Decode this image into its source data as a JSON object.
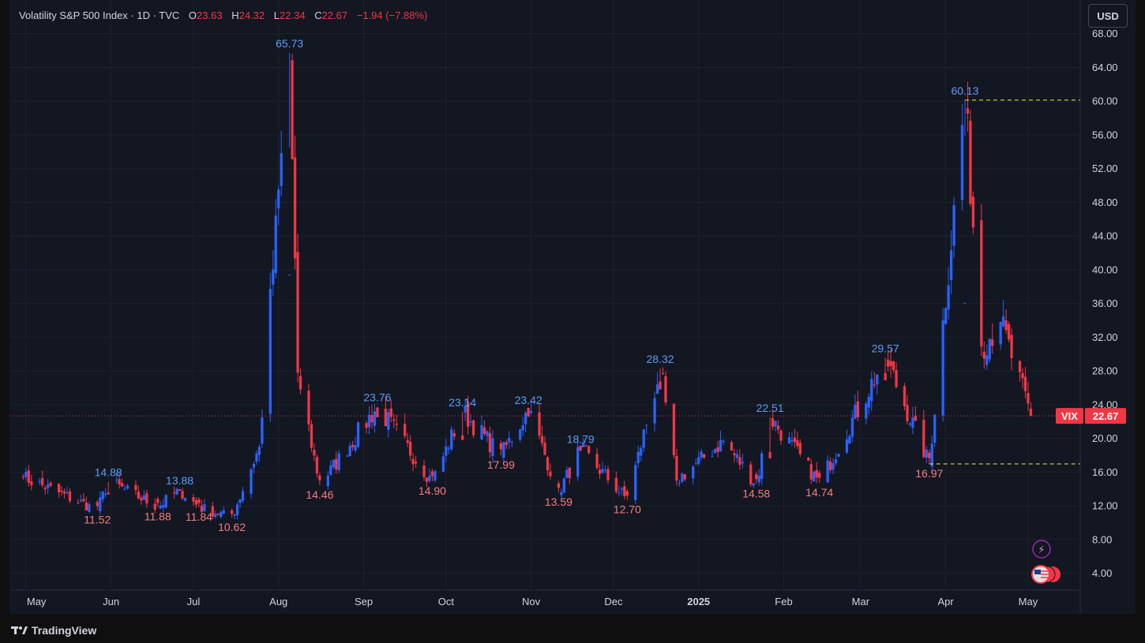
{
  "header": {
    "symbol": "Volatility S&P 500 Index · 1D · TVC",
    "o_label": "O",
    "o_value": "23.63",
    "h_label": "H",
    "h_value": "24.32",
    "l_label": "L",
    "l_value": "22.34",
    "c_label": "C",
    "c_value": "22.67",
    "change": "−1.94 (−7.88%)"
  },
  "currency_button": "USD",
  "brand": "TradingView",
  "price_tag": {
    "symbol": "VIX",
    "value": "22.67"
  },
  "colors": {
    "up": "#2962ff",
    "down": "#f23645",
    "background": "#131722",
    "grid": "#1e222d",
    "axis_text": "#d1d4dc",
    "dashed": "#f5e642"
  },
  "chart_data": {
    "type": "candlestick",
    "title": "Volatility S&P 500 Index · 1D · TVC",
    "ylim": [
      2,
      72
    ],
    "y_ticks": [
      4,
      8,
      12,
      16,
      20,
      24,
      28,
      32,
      36,
      40,
      44,
      48,
      52,
      56,
      60,
      64,
      68
    ],
    "x_ticks": [
      {
        "label": "May",
        "date": "2024-05-01"
      },
      {
        "label": "Jun",
        "date": "2024-06-01"
      },
      {
        "label": "Jul",
        "date": "2024-07-01"
      },
      {
        "label": "Aug",
        "date": "2024-08-01"
      },
      {
        "label": "Sep",
        "date": "2024-09-01"
      },
      {
        "label": "Oct",
        "date": "2024-10-01"
      },
      {
        "label": "Nov",
        "date": "2024-11-01"
      },
      {
        "label": "Dec",
        "date": "2024-12-01"
      },
      {
        "label": "2025",
        "date": "2025-01-01",
        "bold": true
      },
      {
        "label": "Feb",
        "date": "2025-02-01"
      },
      {
        "label": "Mar",
        "date": "2025-03-01"
      },
      {
        "label": "Apr",
        "date": "2025-04-01"
      },
      {
        "label": "May",
        "date": "2025-05-01"
      }
    ],
    "last_price": 22.67,
    "dashed_levels": [
      60.13,
      16.97
    ],
    "grid": true,
    "key_points": [
      {
        "date": "2024-04-30",
        "value": 15.4
      },
      {
        "date": "2024-05-27",
        "value": 11.52,
        "label": "11.52",
        "kind": "low"
      },
      {
        "date": "2024-05-31",
        "value": 14.88,
        "label": "14.88",
        "kind": "high"
      },
      {
        "date": "2024-06-18",
        "value": 11.88,
        "label": "11.88",
        "kind": "low"
      },
      {
        "date": "2024-06-26",
        "value": 13.88,
        "label": "13.88",
        "kind": "high"
      },
      {
        "date": "2024-07-03",
        "value": 11.84,
        "label": "11.84",
        "kind": "low"
      },
      {
        "date": "2024-07-15",
        "value": 10.62,
        "label": "10.62",
        "kind": "low"
      },
      {
        "date": "2024-07-25",
        "value": 19.0
      },
      {
        "date": "2024-08-05",
        "value": 65.73,
        "label": "65.73",
        "kind": "high"
      },
      {
        "date": "2024-08-08",
        "value": 27.8
      },
      {
        "date": "2024-08-16",
        "value": 14.46,
        "label": "14.46",
        "kind": "low"
      },
      {
        "date": "2024-09-06",
        "value": 23.76,
        "label": "23.76",
        "kind": "high"
      },
      {
        "date": "2024-09-26",
        "value": 14.9,
        "label": "14.90",
        "kind": "low"
      },
      {
        "date": "2024-10-07",
        "value": 23.14,
        "label": "23.14",
        "kind": "high"
      },
      {
        "date": "2024-10-21",
        "value": 17.99,
        "label": "17.99",
        "kind": "low"
      },
      {
        "date": "2024-10-31",
        "value": 23.42,
        "label": "23.42",
        "kind": "high"
      },
      {
        "date": "2024-11-11",
        "value": 13.59,
        "label": "13.59",
        "kind": "low"
      },
      {
        "date": "2024-11-19",
        "value": 18.79,
        "label": "18.79",
        "kind": "high"
      },
      {
        "date": "2024-12-06",
        "value": 12.7,
        "label": "12.70",
        "kind": "low"
      },
      {
        "date": "2024-12-18",
        "value": 28.32,
        "label": "28.32",
        "kind": "high"
      },
      {
        "date": "2024-12-24",
        "value": 15.0
      },
      {
        "date": "2025-01-10",
        "value": 19.7
      },
      {
        "date": "2025-01-22",
        "value": 14.58,
        "label": "14.58",
        "kind": "low"
      },
      {
        "date": "2025-01-27",
        "value": 22.51,
        "label": "22.51",
        "kind": "high"
      },
      {
        "date": "2025-02-14",
        "value": 14.74,
        "label": "14.74",
        "kind": "low"
      },
      {
        "date": "2025-03-10",
        "value": 29.57,
        "label": "29.57",
        "kind": "high"
      },
      {
        "date": "2025-03-26",
        "value": 16.97,
        "label": "16.97",
        "kind": "low"
      },
      {
        "date": "2025-04-08",
        "value": 60.13,
        "label": "60.13",
        "kind": "high"
      },
      {
        "date": "2025-04-14",
        "value": 30.9
      },
      {
        "date": "2025-04-21",
        "value": 33.8
      },
      {
        "date": "2025-05-02",
        "value": 22.67
      }
    ]
  }
}
